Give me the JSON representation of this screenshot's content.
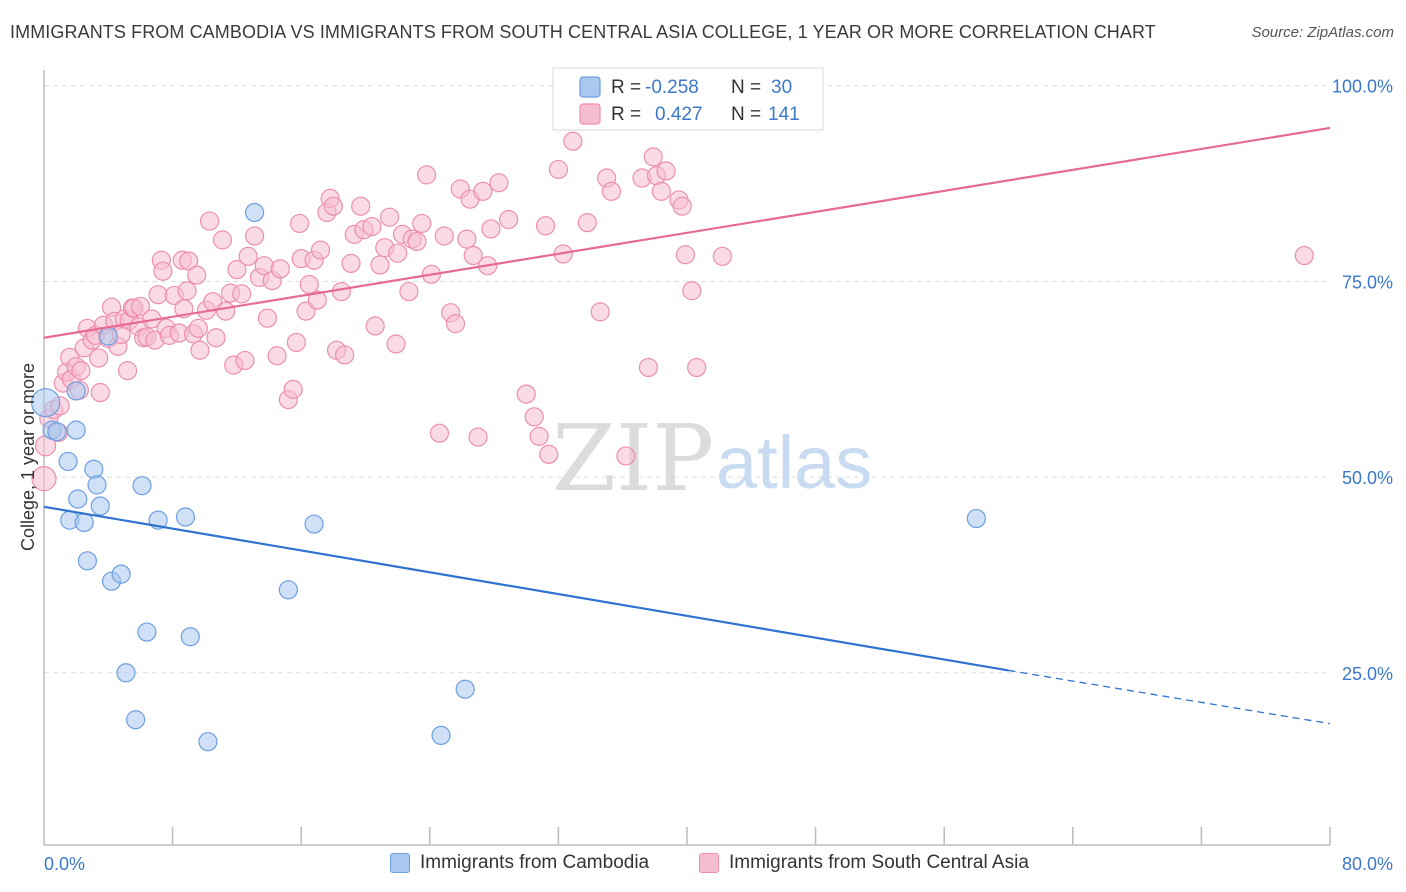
{
  "header": {
    "title": "IMMIGRANTS FROM CAMBODIA VS IMMIGRANTS FROM SOUTH CENTRAL ASIA COLLEGE, 1 YEAR OR MORE CORRELATION CHART",
    "source": "Source: ZipAtlas.com"
  },
  "watermark": {
    "zip": "ZIP",
    "atlas": "atlas"
  },
  "legend_top": {
    "rows": [
      {
        "r_label": "R =",
        "r_value": "-0.258",
        "n_label": "N =",
        "n_value": "30"
      },
      {
        "r_label": "R =",
        "r_value": "0.427",
        "n_label": "N =",
        "n_value": "141"
      }
    ]
  },
  "colors": {
    "blue_fill": "#a9c8f0",
    "blue_stroke": "#6d9fe0",
    "blue_line": "#2f73d0",
    "pink_fill": "#f6bdd0",
    "pink_stroke": "#ec8fae",
    "pink_line": "#e56a95",
    "value_text": "#3b78c9",
    "grid": "#dddddd"
  },
  "chart_data": {
    "type": "scatter",
    "title": "IMMIGRANTS FROM CAMBODIA VS IMMIGRANTS FROM SOUTH CENTRAL ASIA COLLEGE, 1 YEAR OR MORE CORRELATION CHART",
    "xlabel": "",
    "ylabel": "College, 1 year or more",
    "xlim": [
      0,
      80
    ],
    "ylim": [
      3,
      102
    ],
    "x_tick_labels": [
      "0.0%",
      "80.0%"
    ],
    "y_ticks": [
      25,
      50,
      75,
      100
    ],
    "y_tick_labels": [
      "25.0%",
      "50.0%",
      "75.0%",
      "100.0%"
    ],
    "grid": true,
    "legend_position": "bottom",
    "series": [
      {
        "name": "Immigrants from Cambodia",
        "r": -0.258,
        "n": 30,
        "trend": {
          "x": [
            0,
            60
          ],
          "y": [
            46.2,
            25.3
          ],
          "dashed_extension_to": [
            80,
            18.5
          ]
        },
        "points": [
          [
            0.1,
            59.5
          ],
          [
            0.5,
            56.0
          ],
          [
            0.8,
            55.8
          ],
          [
            1.5,
            52.0
          ],
          [
            2.0,
            56.0
          ],
          [
            2.0,
            61.0
          ],
          [
            2.1,
            47.2
          ],
          [
            1.6,
            44.5
          ],
          [
            2.5,
            44.2
          ],
          [
            2.7,
            39.3
          ],
          [
            3.1,
            51.0
          ],
          [
            3.3,
            49.0
          ],
          [
            3.5,
            46.3
          ],
          [
            4.0,
            68.0
          ],
          [
            4.2,
            36.7
          ],
          [
            4.8,
            37.6
          ],
          [
            5.1,
            25.0
          ],
          [
            5.7,
            19.0
          ],
          [
            6.1,
            48.9
          ],
          [
            6.4,
            30.2
          ],
          [
            7.1,
            44.5
          ],
          [
            8.8,
            44.9
          ],
          [
            9.1,
            29.6
          ],
          [
            10.2,
            16.2
          ],
          [
            13.1,
            83.8
          ],
          [
            15.2,
            35.6
          ],
          [
            16.8,
            44.0
          ],
          [
            24.7,
            17.0
          ],
          [
            26.2,
            22.9
          ],
          [
            58.0,
            44.7
          ]
        ]
      },
      {
        "name": "Immigrants from South Central Asia",
        "r": 0.427,
        "n": 141,
        "trend": {
          "x": [
            0,
            80
          ],
          "y": [
            67.8,
            94.6
          ]
        },
        "points": [
          [
            0.0,
            49.8
          ],
          [
            0.1,
            54.0
          ],
          [
            0.3,
            57.5
          ],
          [
            0.6,
            58.6
          ],
          [
            0.9,
            55.7
          ],
          [
            1.0,
            59.1
          ],
          [
            1.2,
            62.0
          ],
          [
            1.4,
            63.4
          ],
          [
            1.6,
            65.3
          ],
          [
            1.7,
            62.5
          ],
          [
            2.0,
            64.1
          ],
          [
            2.2,
            61.1
          ],
          [
            2.3,
            63.6
          ],
          [
            2.5,
            66.5
          ],
          [
            2.7,
            69.0
          ],
          [
            3.0,
            67.5
          ],
          [
            3.2,
            68.1
          ],
          [
            3.4,
            65.2
          ],
          [
            3.5,
            60.8
          ],
          [
            3.7,
            69.4
          ],
          [
            4.0,
            67.7
          ],
          [
            4.2,
            71.7
          ],
          [
            4.4,
            69.9
          ],
          [
            4.6,
            66.7
          ],
          [
            4.8,
            68.2
          ],
          [
            5.0,
            70.2
          ],
          [
            5.2,
            63.6
          ],
          [
            5.3,
            70.0
          ],
          [
            5.5,
            71.6
          ],
          [
            5.6,
            71.6
          ],
          [
            5.9,
            69.2
          ],
          [
            6.0,
            71.8
          ],
          [
            6.2,
            67.8
          ],
          [
            6.4,
            67.9
          ],
          [
            6.7,
            70.2
          ],
          [
            6.9,
            67.5
          ],
          [
            7.1,
            73.3
          ],
          [
            7.3,
            77.7
          ],
          [
            7.4,
            76.3
          ],
          [
            7.6,
            69.0
          ],
          [
            7.8,
            68.1
          ],
          [
            8.1,
            73.2
          ],
          [
            8.4,
            68.4
          ],
          [
            8.6,
            77.7
          ],
          [
            8.7,
            71.5
          ],
          [
            8.9,
            73.8
          ],
          [
            9.0,
            77.6
          ],
          [
            9.3,
            68.3
          ],
          [
            9.5,
            75.8
          ],
          [
            9.6,
            69.0
          ],
          [
            9.7,
            66.2
          ],
          [
            10.1,
            71.3
          ],
          [
            10.3,
            82.7
          ],
          [
            10.5,
            72.4
          ],
          [
            10.7,
            67.8
          ],
          [
            11.1,
            80.3
          ],
          [
            11.3,
            71.2
          ],
          [
            11.6,
            73.5
          ],
          [
            11.8,
            64.3
          ],
          [
            12.0,
            76.5
          ],
          [
            12.3,
            73.4
          ],
          [
            12.5,
            64.9
          ],
          [
            12.7,
            78.2
          ],
          [
            13.1,
            80.8
          ],
          [
            13.4,
            75.5
          ],
          [
            13.7,
            77.0
          ],
          [
            13.9,
            70.3
          ],
          [
            14.2,
            75.1
          ],
          [
            14.5,
            65.5
          ],
          [
            14.7,
            76.6
          ],
          [
            15.2,
            59.9
          ],
          [
            15.5,
            61.2
          ],
          [
            15.7,
            67.2
          ],
          [
            15.9,
            82.4
          ],
          [
            16.0,
            77.9
          ],
          [
            16.3,
            71.2
          ],
          [
            16.5,
            74.6
          ],
          [
            16.8,
            77.7
          ],
          [
            17.0,
            72.6
          ],
          [
            17.2,
            79.0
          ],
          [
            17.6,
            83.8
          ],
          [
            17.8,
            85.6
          ],
          [
            18.0,
            84.6
          ],
          [
            18.2,
            66.2
          ],
          [
            18.5,
            73.7
          ],
          [
            18.7,
            65.6
          ],
          [
            19.1,
            77.3
          ],
          [
            19.3,
            81.0
          ],
          [
            19.7,
            84.6
          ],
          [
            19.9,
            81.6
          ],
          [
            20.4,
            82.0
          ],
          [
            20.6,
            69.3
          ],
          [
            20.9,
            77.1
          ],
          [
            21.2,
            79.3
          ],
          [
            21.5,
            83.2
          ],
          [
            21.9,
            67.0
          ],
          [
            22.0,
            78.6
          ],
          [
            22.3,
            81.0
          ],
          [
            22.7,
            73.7
          ],
          [
            22.9,
            80.4
          ],
          [
            23.2,
            80.1
          ],
          [
            23.5,
            82.4
          ],
          [
            23.8,
            88.6
          ],
          [
            24.1,
            75.9
          ],
          [
            24.6,
            55.6
          ],
          [
            24.9,
            80.8
          ],
          [
            25.3,
            71.0
          ],
          [
            25.6,
            69.6
          ],
          [
            25.9,
            86.8
          ],
          [
            26.3,
            80.4
          ],
          [
            26.5,
            85.5
          ],
          [
            26.7,
            78.3
          ],
          [
            27.0,
            55.1
          ],
          [
            27.3,
            86.5
          ],
          [
            27.6,
            77.0
          ],
          [
            27.8,
            81.7
          ],
          [
            28.3,
            87.6
          ],
          [
            28.9,
            82.9
          ],
          [
            30.0,
            60.6
          ],
          [
            30.5,
            57.7
          ],
          [
            30.8,
            55.2
          ],
          [
            31.2,
            82.1
          ],
          [
            31.4,
            52.9
          ],
          [
            32.0,
            89.3
          ],
          [
            32.3,
            78.5
          ],
          [
            32.9,
            92.9
          ],
          [
            33.8,
            82.5
          ],
          [
            34.6,
            71.1
          ],
          [
            35.0,
            88.2
          ],
          [
            35.3,
            86.5
          ],
          [
            36.2,
            52.7
          ],
          [
            37.2,
            88.2
          ],
          [
            37.6,
            64.0
          ],
          [
            37.9,
            90.9
          ],
          [
            38.1,
            88.5
          ],
          [
            38.4,
            86.5
          ],
          [
            38.7,
            89.1
          ],
          [
            39.5,
            85.4
          ],
          [
            39.7,
            84.6
          ],
          [
            39.9,
            78.4
          ],
          [
            40.3,
            73.8
          ],
          [
            40.6,
            64.0
          ],
          [
            42.2,
            78.2
          ],
          [
            78.4,
            78.3
          ]
        ]
      }
    ]
  },
  "legend_bottom": {
    "items": [
      {
        "label": "Immigrants from Cambodia"
      },
      {
        "label": "Immigrants from South Central Asia"
      }
    ]
  }
}
